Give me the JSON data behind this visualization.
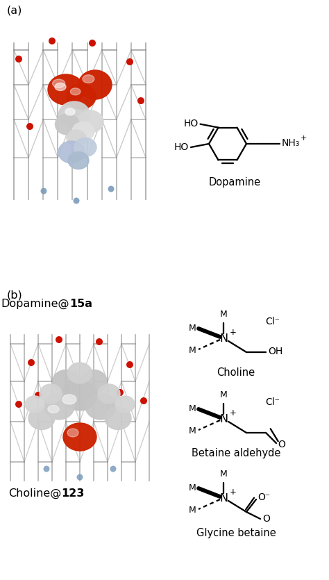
{
  "fig_width": 4.74,
  "fig_height": 8.35,
  "dpi": 100,
  "bg_color": "#ffffff",
  "text_color": "#000000",
  "bond_color": "#000000",
  "panel_a_label": "(a)",
  "panel_b_label": "(b)",
  "caption_a_normal": "Dopamine@",
  "caption_a_bold": "15a",
  "caption_b_normal": "Choline@",
  "caption_b_bold": "123",
  "dopamine_label": "Dopamine",
  "choline_label": "Choline",
  "betaine_label": "Betaine aldehyde",
  "glycine_label": "Glycine betaine",
  "cage_gray": "#888888",
  "cage_red": "#cc1100",
  "cage_blue": "#7799bb",
  "sphere_red": "#cc1100",
  "sphere_gray1": "#aaaaaa",
  "sphere_gray2": "#c8c8c8",
  "sphere_gray3": "#e0e0e0",
  "sphere_blue": "#aabbcc"
}
